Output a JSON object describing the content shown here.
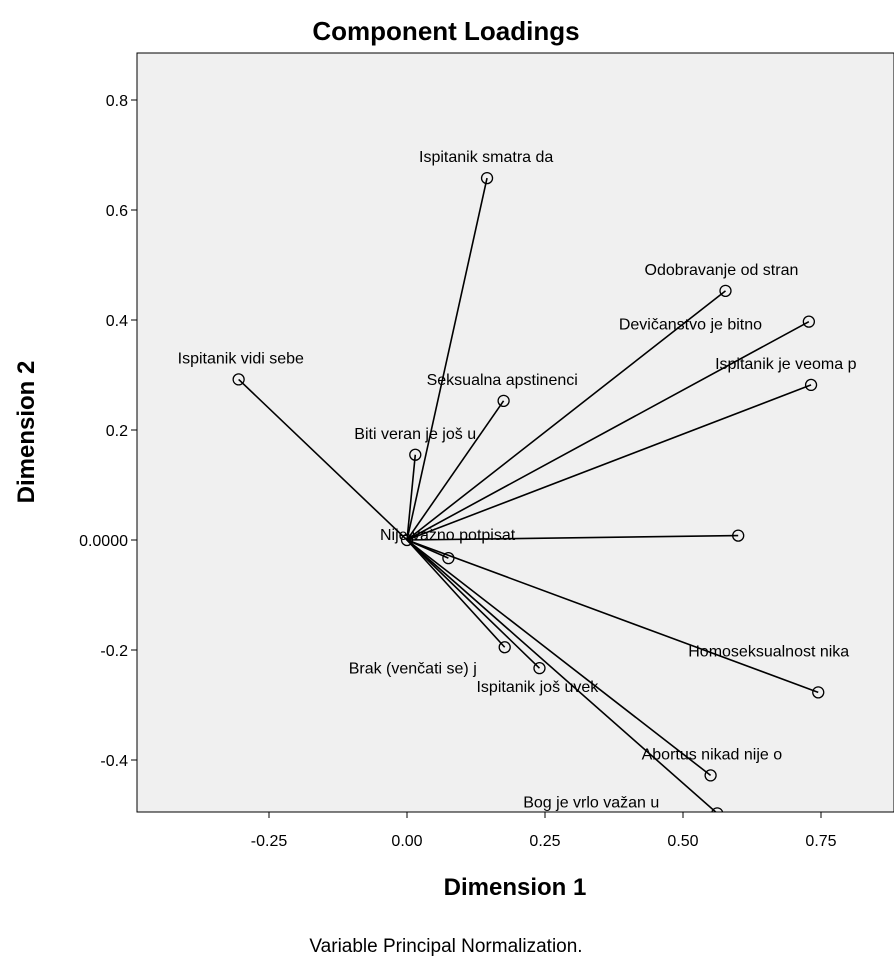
{
  "chart_data": {
    "type": "scatter",
    "title": "Component Loadings",
    "xlabel": "Dimension 1",
    "ylabel": "Dimension 2",
    "footnote": "Variable Principal Normalization.",
    "xlim": [
      -0.5,
      0.9
    ],
    "ylim": [
      -0.5,
      0.88
    ],
    "x_ticks": [
      -0.25,
      0.0,
      0.25,
      0.5,
      0.75
    ],
    "x_tick_labels": [
      "-0.25",
      "0.00",
      "0.25",
      "0.50",
      "0.75"
    ],
    "y_ticks": [
      -0.4,
      -0.2,
      0.0,
      0.2,
      0.4,
      0.6,
      0.8
    ],
    "y_tick_labels": [
      "-0.4",
      "-0.2",
      "0.0000",
      "0.2",
      "0.4",
      "0.6",
      "0.8"
    ],
    "grid": false,
    "vectors_from_origin": true,
    "points": [
      {
        "label": "Ispitanik smatra da",
        "x": 0.145,
        "y": 0.658
      },
      {
        "label": "Odobravanje od stran",
        "x": 0.577,
        "y": 0.453
      },
      {
        "label": "Devičanstvo je bitno",
        "x": 0.728,
        "y": 0.397
      },
      {
        "label": "Ispitanik je veoma p",
        "x": 0.732,
        "y": 0.282
      },
      {
        "label": "Ispitanik vidi sebe",
        "x": -0.305,
        "y": 0.292
      },
      {
        "label": "Seksualna apstinenci",
        "x": 0.175,
        "y": 0.253
      },
      {
        "label": "Biti veran je još u",
        "x": 0.015,
        "y": 0.155
      },
      {
        "label": "Nije važno potpisat",
        "x": 0.0,
        "y": 0.0
      },
      {
        "label": "",
        "x": 0.6,
        "y": 0.008
      },
      {
        "label": "",
        "x": 0.075,
        "y": -0.033
      },
      {
        "label": "Homoseksualnost nika",
        "x": 0.745,
        "y": -0.277
      },
      {
        "label": "Brak (venčati se) j",
        "x": 0.177,
        "y": -0.195
      },
      {
        "label": "Ispitanik još uvek",
        "x": 0.24,
        "y": -0.233
      },
      {
        "label": "Abortus nikad nije o",
        "x": 0.55,
        "y": -0.428
      },
      {
        "label": "Bog je vrlo važan u",
        "x": 0.562,
        "y": -0.497
      }
    ]
  }
}
